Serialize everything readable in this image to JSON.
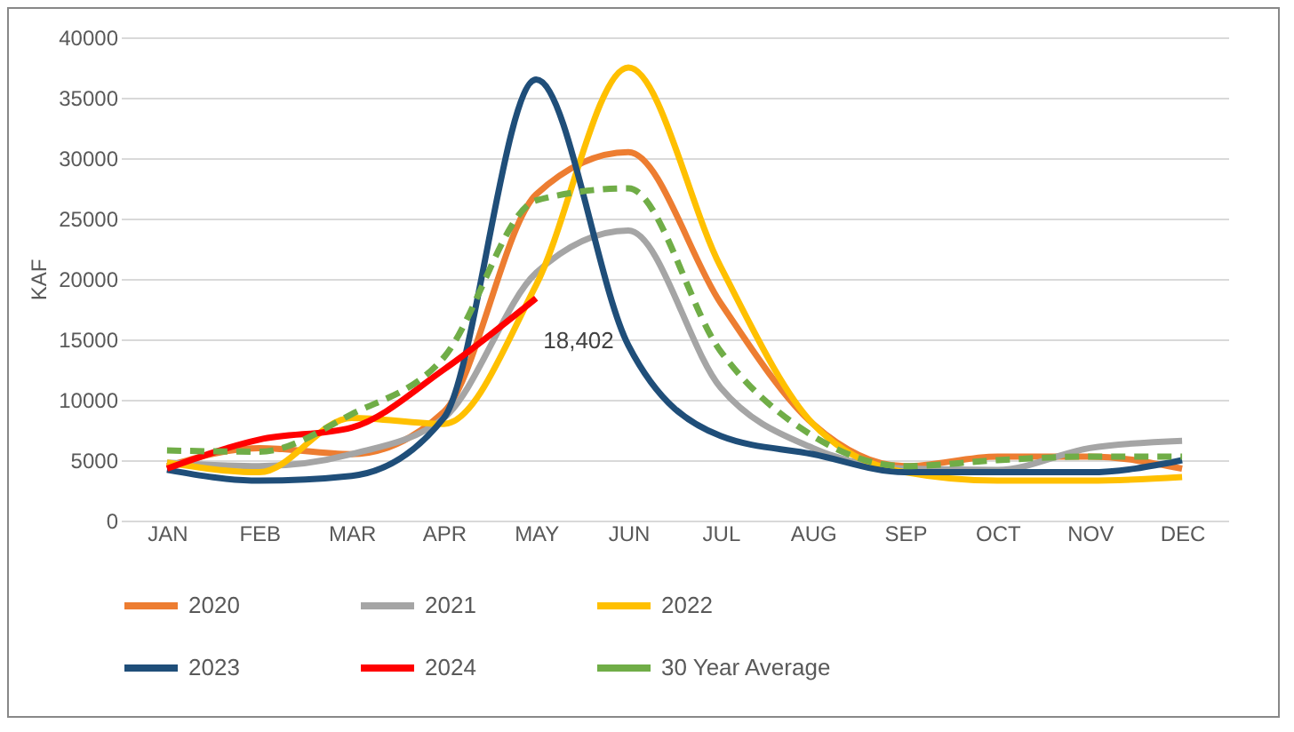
{
  "chart_data": {
    "type": "line",
    "ylabel": "KAF",
    "categories": [
      "JAN",
      "FEB",
      "MAR",
      "APR",
      "MAY",
      "JUN",
      "JUL",
      "AUG",
      "SEP",
      "OCT",
      "NOV",
      "DEC"
    ],
    "ylim": [
      0,
      40000
    ],
    "yticks": [
      0,
      5000,
      10000,
      15000,
      20000,
      25000,
      30000,
      35000,
      40000
    ],
    "grid": "y",
    "legend": "bottom",
    "series": [
      {
        "name": "2020",
        "color": "#ed7d31",
        "values": [
          4500,
          6000,
          5500,
          9000,
          27000,
          30500,
          18000,
          8000,
          4500,
          5300,
          5300,
          4300
        ]
      },
      {
        "name": "2021",
        "color": "#a5a5a5",
        "values": [
          4800,
          4500,
          5500,
          8500,
          20500,
          24000,
          11000,
          6000,
          4300,
          4200,
          6000,
          6600
        ]
      },
      {
        "name": "2022",
        "color": "#ffc000",
        "values": [
          4800,
          4000,
          8500,
          8000,
          19500,
          37500,
          21000,
          8000,
          4000,
          3300,
          3300,
          3600
        ]
      },
      {
        "name": "2023",
        "color": "#1f4e79",
        "values": [
          4200,
          3300,
          3700,
          8500,
          36500,
          14500,
          7000,
          5500,
          4000,
          4000,
          4000,
          5000
        ]
      },
      {
        "name": "2024",
        "color": "#ff0000",
        "values": [
          4300,
          6700,
          7700,
          12500,
          18402,
          null,
          null,
          null,
          null,
          null,
          null,
          null
        ],
        "value_labels": [
          null,
          null,
          null,
          null,
          "18,402",
          null,
          null,
          null,
          null,
          null,
          null,
          null
        ]
      },
      {
        "name": "30 Year Average",
        "color": "#70ad47",
        "line_style": "dashed",
        "values": [
          5800,
          5700,
          8800,
          13500,
          26500,
          27500,
          14000,
          7000,
          4500,
          5000,
          5300,
          5300
        ]
      }
    ]
  }
}
